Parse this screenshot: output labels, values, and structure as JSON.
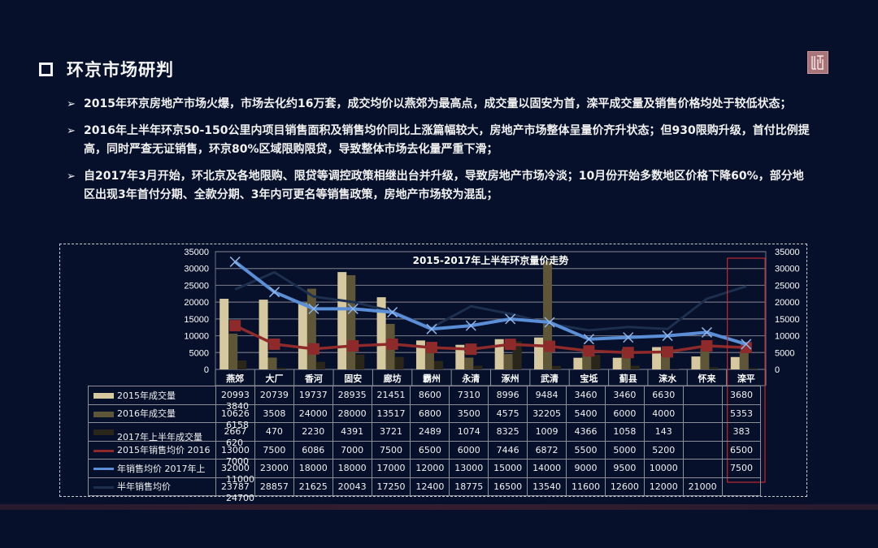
{
  "header": {
    "title": "环京市场研判",
    "logo_icon": "seal-logo-icon"
  },
  "bullets": [
    {
      "text": "2015年环京房地产市场火爆，市场去化约16万套，成交均价以燕郊为最高点，成交量以固安为首，滦平成交量及销售价格均处于较低状态；"
    },
    {
      "text": "2016年上半年环京50-150公里内项目销售面积及销售均价同比上涨篇幅较大，房地产市场整体呈量价齐升状态；但930限购升级，首付比例提高，同时严查无证销售，环京80%区域限购限贷，导致整体市场去化量严重下滑；"
    },
    {
      "text": "自2017年3月开始，环北京及各地限购、限贷等调控政策相继出台并升级，导致房地产市场冷淡；10月份开始多数地区价格下降60%，部分地区出现3年首付分期、全款分期、3年内可更名等销售政策，房地产市场较为混乱；"
    }
  ],
  "chart_data": {
    "type": "bar",
    "title": "2015-2017年上半年环京量价走势",
    "xlabel": "",
    "ylabel": "",
    "ylim": [
      0,
      35000
    ],
    "y_ticks": [
      0,
      5000,
      10000,
      15000,
      20000,
      25000,
      30000,
      35000
    ],
    "y2lim": [
      0,
      35000
    ],
    "grid": true,
    "legend_position": "table-left",
    "highlight_category": "滦平",
    "highlight_color": "#c0282d",
    "categories": [
      "燕郊",
      "大厂",
      "香河",
      "固安",
      "廊坊",
      "霸州",
      "永清",
      "涿州",
      "武清",
      "宝坻",
      "蓟县",
      "涞水",
      "怀来",
      "滦平"
    ],
    "series": [
      {
        "name": "2015年成交量",
        "kind": "bar",
        "color": "#d6c9a0",
        "values": [
          20993,
          20739,
          19737,
          28935,
          21451,
          8600,
          7310,
          8996,
          9484,
          3460,
          3460,
          6630,
          3840,
          3680
        ]
      },
      {
        "name": "2016年成交量",
        "kind": "bar",
        "color": "#5e5637",
        "values": [
          10626,
          3508,
          24000,
          28000,
          13517,
          6800,
          3500,
          4575,
          32205,
          5400,
          6000,
          4000,
          6158,
          5353
        ]
      },
      {
        "name": "2017年上半年成交量",
        "kind": "bar",
        "color": "#2a2619",
        "values": [
          2667,
          470,
          2230,
          4391,
          3721,
          2489,
          1074,
          8325,
          1009,
          4366,
          1058,
          143,
          620,
          383
        ]
      },
      {
        "name": "2015年销售均价",
        "kind": "line",
        "color": "#8e2a2a",
        "marker": "square",
        "values": [
          13000,
          7500,
          6086,
          7000,
          7500,
          6500,
          6000,
          7446,
          6872,
          5500,
          5000,
          5200,
          7000,
          6500
        ]
      },
      {
        "name": "2016年销售均价",
        "kind": "line",
        "color": "#5a8fd8",
        "marker": "x",
        "values": [
          32000,
          23000,
          18000,
          18000,
          17000,
          12000,
          13000,
          15000,
          14000,
          9000,
          9500,
          10000,
          11000,
          7500
        ]
      },
      {
        "name": "2017年上半年销售均价",
        "kind": "line",
        "color": "#1c2f4e",
        "marker": "none",
        "values": [
          23787,
          28857,
          21625,
          20043,
          17250,
          12400,
          18775,
          16500,
          13540,
          11600,
          12600,
          12000,
          21000,
          24700
        ]
      }
    ]
  },
  "table": {
    "legend_labels": [
      "2015年成交量",
      "2016年成交量",
      "2017年上半年成交量",
      "2015年销售均价  2016",
      "年销售均价  2017年上",
      "半年销售均价"
    ],
    "rows": [
      [
        "20993",
        "20739",
        "19737",
        "28935",
        "21451",
        "8600",
        "7310",
        "8996",
        "9484",
        "3460",
        "3460",
        "6630",
        "",
        "3680"
      ],
      [
        "10626",
        "3508",
        "24000",
        "28000",
        "13517",
        "6800",
        "3500",
        "4575",
        "32205",
        "5400",
        "6000",
        "4000",
        "",
        "5353"
      ],
      [
        "2667",
        "470",
        "2230",
        "4391",
        "3721",
        "2489",
        "1074",
        "8325",
        "1009",
        "4366",
        "1058",
        "143",
        "",
        "383"
      ],
      [
        "13000",
        "7500",
        "6086",
        "7000",
        "7500",
        "6500",
        "6000",
        "7446",
        "6872",
        "5500",
        "5000",
        "5200",
        "",
        "6500"
      ],
      [
        "32000",
        "23000",
        "18000",
        "18000",
        "17000",
        "12000",
        "13000",
        "15000",
        "14000",
        "9000",
        "9500",
        "10000",
        "",
        "7500"
      ],
      [
        "23787",
        "28857",
        "21625",
        "20043",
        "17250",
        "12400",
        "18775",
        "16500",
        "13540",
        "11600",
        "12600",
        "12000",
        "21000",
        ""
      ]
    ],
    "overflow_values": [
      "3840",
      "6158",
      "620",
      "7000",
      "11000",
      "24700"
    ]
  }
}
